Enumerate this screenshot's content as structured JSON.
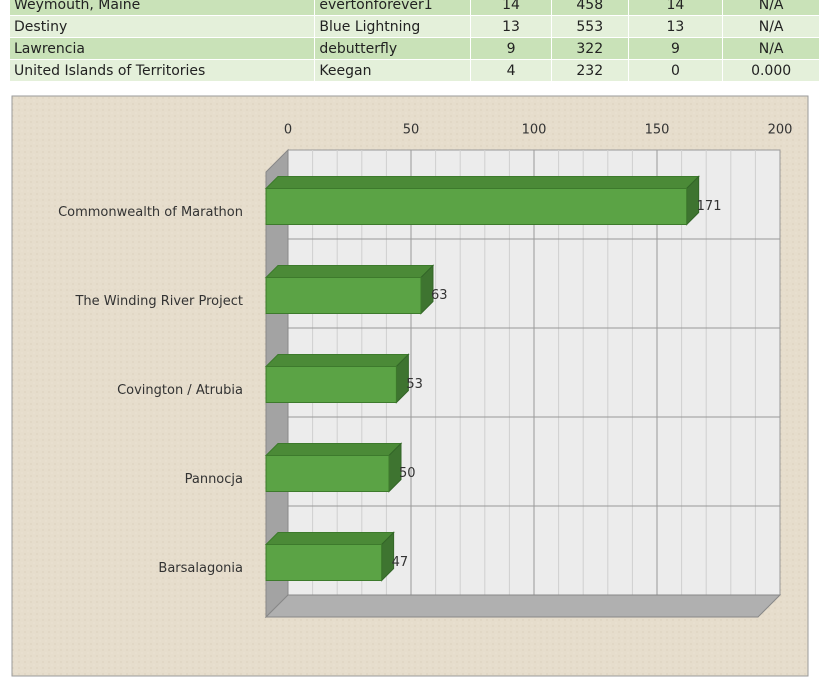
{
  "table": {
    "rows": [
      [
        "Weymouth, Maine",
        "evertonforever1",
        "14",
        "458",
        "14",
        "N/A"
      ],
      [
        "Destiny",
        "Blue Lightning",
        "13",
        "553",
        "13",
        "N/A"
      ],
      [
        "Lawrencia",
        "debutterfly",
        "9",
        "322",
        "9",
        "N/A"
      ],
      [
        "United Islands of Territories",
        "Keegan",
        "4",
        "232",
        "0",
        "0.000"
      ]
    ]
  },
  "chart_data": {
    "type": "bar",
    "orientation": "horizontal",
    "categories": [
      "Commonwealth of Marathon",
      "The Winding River Project",
      "Covington / Atrubia",
      "Pannocja",
      "Barsalagonia"
    ],
    "values": [
      171,
      63,
      53,
      50,
      47
    ],
    "color": "#5ba345",
    "xlim": [
      0,
      200
    ],
    "xticks": [
      0,
      50,
      100,
      150,
      200
    ],
    "grid": true
  }
}
